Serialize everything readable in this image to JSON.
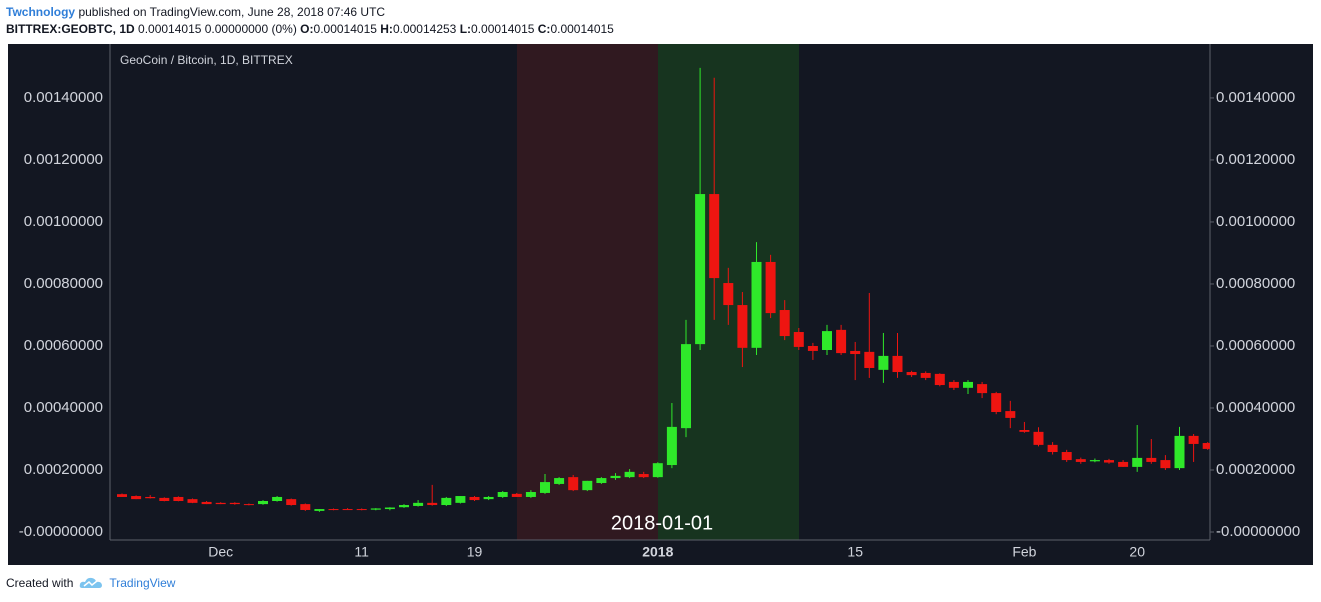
{
  "header": {
    "author": "Twchnology",
    "published": "published on TradingView.com, June 28, 2018 07:46 UTC",
    "symbol": "BITTREX:GEOBTC, 1D",
    "change": "0.00014015 0.00000000 (0%)",
    "ohlc": [
      {
        "label": "O:",
        "value": 0.00014015
      },
      {
        "label": "H:",
        "value": 0.00014253
      },
      {
        "label": "L:",
        "value": 0.00014015
      },
      {
        "label": "C:",
        "value": 0.00014015
      }
    ]
  },
  "footer": {
    "created": "Created with",
    "brand": "TradingView"
  },
  "chart_data": {
    "type": "candlestick",
    "title": "GeoCoin / Bitcoin, 1D, BITTREX",
    "annotation": "2018-01-01",
    "up_color": "#2fe82a",
    "down_color": "#ee1511",
    "grid": false,
    "categories": [
      null,
      null,
      null,
      null,
      null,
      null,
      null,
      "Dec",
      null,
      null,
      null,
      null,
      null,
      null,
      null,
      null,
      null,
      "11",
      null,
      null,
      null,
      null,
      null,
      null,
      null,
      "19",
      null,
      null,
      null,
      null,
      null,
      null,
      null,
      null,
      null,
      null,
      null,
      null,
      "2018",
      null,
      null,
      null,
      null,
      null,
      null,
      null,
      null,
      null,
      null,
      null,
      null,
      null,
      "15",
      null,
      null,
      null,
      null,
      null,
      null,
      null,
      null,
      null,
      null,
      null,
      "Feb",
      null,
      null,
      null,
      null,
      null,
      null,
      null,
      "20",
      null,
      null,
      null,
      null,
      null
    ],
    "open": [
      0.000122,
      0.000116,
      0.000113,
      0.00011,
      0.000113,
      0.000106,
      9.7e-05,
      9.4e-05,
      9.4e-05,
      9e-05,
      9e-05,
      0.0001,
      0.000106,
      9e-05,
      6.8e-05,
      7.4e-05,
      7.4e-05,
      7.4e-05,
      7.2e-05,
      7.4e-05,
      8e-05,
      8.4e-05,
      9.4e-05,
      8.7e-05,
      9.4e-05,
      0.000113,
      0.000106,
      0.000113,
      0.000123,
      0.000113,
      0.000126,
      0.000155,
      0.000177,
      0.000135,
      0.000158,
      0.000174,
      0.000177,
      0.000187,
      0.000177,
      0.000216,
      0.000335,
      0.000606,
      0.00109,
      0.000803,
      0.000732,
      0.000594,
      0.000871,
      0.000716,
      0.000645,
      0.0006,
      0.000587,
      0.000652,
      0.000584,
      0.000581,
      0.000523,
      0.000568,
      0.000516,
      0.000513,
      0.00051,
      0.000484,
      0.000465,
      0.000477,
      0.000448,
      0.00039,
      0.000329,
      0.000323,
      0.000281,
      0.000258,
      0.000235,
      0.000228,
      0.000232,
      0.000226,
      0.00021,
      0.000239,
      0.000232,
      0.000206,
      0.00031,
      0.000287
    ],
    "high": [
      0.000124,
      0.000118,
      0.000119,
      0.000112,
      0.000115,
      0.000108,
      0.0001,
      9.6e-05,
      9.6e-05,
      9.2e-05,
      0.000103,
      0.000116,
      0.000108,
      9.2e-05,
      7.4e-05,
      7.6e-05,
      7.7e-05,
      7.6e-05,
      7.7e-05,
      8e-05,
      9e-05,
      0.000103,
      0.000152,
      0.000113,
      0.000116,
      0.000116,
      0.000116,
      0.000132,
      0.000126,
      0.000135,
      0.000187,
      0.000177,
      0.000184,
      0.000165,
      0.000177,
      0.00019,
      0.000203,
      0.000194,
      0.000225,
      0.000416,
      0.000684,
      0.001497,
      0.001465,
      0.000852,
      0.000774,
      0.000935,
      0.000894,
      0.000748,
      0.000658,
      0.00061,
      0.000668,
      0.000668,
      0.000613,
      0.000771,
      0.000642,
      0.000642,
      0.00052,
      0.000518,
      0.000512,
      0.00049,
      0.00049,
      0.000484,
      0.000452,
      0.000423,
      0.000355,
      0.000338,
      0.00029,
      0.000265,
      0.00024,
      0.000237,
      0.000236,
      0.000232,
      0.000345,
      0.0003,
      0.000248,
      0.000339,
      0.000316,
      0.00029
    ],
    "low": [
      0.000113,
      0.000106,
      0.000108,
      9.9e-05,
      9.9e-05,
      9.3e-05,
      9e-05,
      9e-05,
      8.8e-05,
      8.6e-05,
      8.8e-05,
      9.8e-05,
      8.5e-05,
      6.8e-05,
      6.5e-05,
      7e-05,
      7.1e-05,
      7e-05,
      7e-05,
      7e-05,
      7.8e-05,
      8.2e-05,
      8.5e-05,
      8.4e-05,
      9.2e-05,
      0.0001,
      0.000103,
      0.00011,
      0.000113,
      0.00011,
      0.000123,
      0.000152,
      0.000132,
      0.000132,
      0.000155,
      0.000168,
      0.000174,
      0.000174,
      0.000175,
      0.000206,
      0.000306,
      0.000587,
      0.000684,
      0.000668,
      0.000532,
      0.000571,
      0.00069,
      0.000619,
      0.000587,
      0.000555,
      0.000571,
      0.000571,
      0.00049,
      0.000497,
      0.000481,
      0.000497,
      0.0005,
      0.00049,
      0.00047,
      0.000458,
      0.000445,
      0.000432,
      0.00038,
      0.000335,
      0.00032,
      0.000276,
      0.00025,
      0.000226,
      0.00022,
      0.000225,
      0.00022,
      0.00021,
      0.000194,
      0.00022,
      0.0002,
      0.0002,
      0.000226,
      0.000265
    ],
    "close": [
      0.000113,
      0.000106,
      0.000109,
      0.0001,
      0.0001,
      9.4e-05,
      9e-05,
      9e-05,
      9e-05,
      8.7e-05,
      0.0001,
      0.000113,
      8.7e-05,
      7.1e-05,
      7.4e-05,
      7.1e-05,
      7.2e-05,
      7.2e-05,
      7.6e-05,
      7.9e-05,
      8.7e-05,
      9.4e-05,
      8.7e-05,
      0.00011,
      0.000116,
      0.000103,
      0.000113,
      0.000129,
      0.000113,
      0.000129,
      0.000161,
      0.000174,
      0.000135,
      0.000165,
      0.000174,
      0.000181,
      0.000194,
      0.000177,
      0.000222,
      0.000339,
      0.000606,
      0.00109,
      0.000819,
      0.000732,
      0.000594,
      0.000871,
      0.000706,
      0.000632,
      0.000597,
      0.000584,
      0.000648,
      0.000577,
      0.000574,
      0.000529,
      0.000568,
      0.000516,
      0.000506,
      0.000497,
      0.000474,
      0.000465,
      0.000484,
      0.000448,
      0.000387,
      0.000368,
      0.000323,
      0.000281,
      0.000258,
      0.000232,
      0.000226,
      0.000232,
      0.000224,
      0.00021,
      0.000239,
      0.000226,
      0.000206,
      0.00031,
      0.000284,
      0.000268
    ],
    "ylim": [
      -2.58e-05,
      0.001574
    ],
    "yticks": [
      {
        "value": 0,
        "label": "-0.00000000"
      },
      {
        "value": 0.0002,
        "label": "0.00020000"
      },
      {
        "value": 0.0004,
        "label": "0.00040000"
      },
      {
        "value": 0.0006,
        "label": "0.00060000"
      },
      {
        "value": 0.0008,
        "label": "0.00080000"
      },
      {
        "value": 0.001,
        "label": "0.00100000"
      },
      {
        "value": 0.0012,
        "label": "0.00120000"
      },
      {
        "value": 0.0014,
        "label": "0.00140000"
      }
    ]
  }
}
